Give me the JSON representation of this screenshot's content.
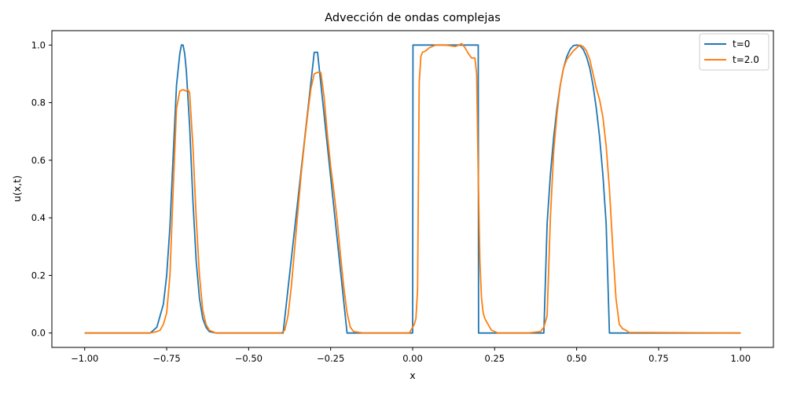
{
  "chart_data": {
    "type": "line",
    "title": "Advección de ondas complejas",
    "xlabel": "x",
    "ylabel": "u(x,t)",
    "xlim": [
      -1.1,
      1.1
    ],
    "ylim": [
      -0.05,
      1.05
    ],
    "xticks": [
      -1.0,
      -0.75,
      -0.5,
      -0.25,
      0.0,
      0.25,
      0.5,
      0.75,
      1.0
    ],
    "xtick_labels": [
      "−1.00",
      "−0.75",
      "−0.50",
      "−0.25",
      "0.00",
      "0.25",
      "0.50",
      "0.75",
      "1.00"
    ],
    "yticks": [
      0.0,
      0.2,
      0.4,
      0.6,
      0.8,
      1.0
    ],
    "ytick_labels": [
      "0.0",
      "0.2",
      "0.4",
      "0.6",
      "0.8",
      "1.0"
    ],
    "grid": false,
    "legend_position": "top-right",
    "colors": {
      "t0": "#1f77b4",
      "t2": "#ff7f0e",
      "axes": "#000000"
    },
    "series": [
      {
        "name": "t=0",
        "color": "#1f77b4",
        "x": [
          -1.0,
          -0.8,
          -0.78,
          -0.76,
          -0.75,
          -0.74,
          -0.73,
          -0.72,
          -0.71,
          -0.705,
          -0.7,
          -0.695,
          -0.69,
          -0.68,
          -0.67,
          -0.66,
          -0.65,
          -0.64,
          -0.63,
          -0.62,
          -0.6,
          -0.4,
          -0.395,
          -0.3,
          -0.29,
          -0.2,
          -0.195,
          0.0,
          0.001,
          0.2,
          0.201,
          0.4,
          0.41,
          0.42,
          0.43,
          0.44,
          0.45,
          0.46,
          0.47,
          0.48,
          0.49,
          0.5,
          0.51,
          0.52,
          0.53,
          0.54,
          0.55,
          0.56,
          0.57,
          0.58,
          0.59,
          0.6,
          0.601,
          1.0
        ],
        "y": [
          0.0,
          0.0,
          0.02,
          0.1,
          0.2,
          0.37,
          0.62,
          0.86,
          0.97,
          1.0,
          1.0,
          0.97,
          0.91,
          0.72,
          0.46,
          0.25,
          0.12,
          0.05,
          0.02,
          0.005,
          0.0,
          0.0,
          0.0,
          0.975,
          0.975,
          0.0,
          0.0,
          0.0,
          1.0,
          1.0,
          0.0,
          0.0,
          0.38,
          0.55,
          0.68,
          0.78,
          0.86,
          0.92,
          0.96,
          0.985,
          0.998,
          1.0,
          0.998,
          0.985,
          0.96,
          0.92,
          0.86,
          0.78,
          0.68,
          0.55,
          0.38,
          0.0,
          0.0,
          0.0
        ]
      },
      {
        "name": "t=2.0",
        "color": "#ff7f0e",
        "x": [
          -1.0,
          -0.8,
          -0.78,
          -0.77,
          -0.76,
          -0.75,
          -0.74,
          -0.73,
          -0.72,
          -0.71,
          -0.7,
          -0.69,
          -0.685,
          -0.68,
          -0.67,
          -0.66,
          -0.65,
          -0.64,
          -0.63,
          -0.62,
          -0.6,
          -0.4,
          -0.39,
          -0.38,
          -0.37,
          -0.36,
          -0.35,
          -0.34,
          -0.33,
          -0.32,
          -0.31,
          -0.3,
          -0.29,
          -0.28,
          -0.27,
          -0.26,
          -0.25,
          -0.24,
          -0.23,
          -0.22,
          -0.21,
          -0.2,
          -0.19,
          -0.18,
          -0.15,
          -0.05,
          -0.01,
          0.0,
          0.005,
          0.01,
          0.015,
          0.02,
          0.025,
          0.03,
          0.04,
          0.05,
          0.07,
          0.1,
          0.13,
          0.15,
          0.16,
          0.17,
          0.18,
          0.19,
          0.195,
          0.2,
          0.205,
          0.21,
          0.215,
          0.22,
          0.23,
          0.24,
          0.25,
          0.26,
          0.28,
          0.35,
          0.39,
          0.4,
          0.41,
          0.42,
          0.43,
          0.44,
          0.45,
          0.46,
          0.47,
          0.48,
          0.49,
          0.5,
          0.51,
          0.52,
          0.53,
          0.54,
          0.55,
          0.56,
          0.57,
          0.58,
          0.59,
          0.6,
          0.61,
          0.62,
          0.63,
          0.64,
          0.65,
          0.66,
          1.0
        ],
        "y": [
          0.0,
          0.0,
          0.005,
          0.01,
          0.03,
          0.07,
          0.2,
          0.5,
          0.78,
          0.84,
          0.845,
          0.84,
          0.845,
          0.835,
          0.65,
          0.4,
          0.2,
          0.08,
          0.03,
          0.01,
          0.0,
          0.0,
          0.01,
          0.06,
          0.16,
          0.29,
          0.42,
          0.55,
          0.66,
          0.76,
          0.85,
          0.9,
          0.905,
          0.905,
          0.82,
          0.69,
          0.58,
          0.49,
          0.39,
          0.27,
          0.16,
          0.07,
          0.02,
          0.005,
          0.0,
          0.0,
          0.0,
          0.02,
          0.03,
          0.05,
          0.15,
          0.87,
          0.96,
          0.975,
          0.98,
          0.99,
          1.0,
          1.0,
          0.995,
          1.005,
          0.99,
          0.97,
          0.955,
          0.955,
          0.9,
          0.55,
          0.25,
          0.12,
          0.07,
          0.05,
          0.03,
          0.01,
          0.005,
          0.0,
          0.0,
          0.0,
          0.005,
          0.02,
          0.06,
          0.4,
          0.63,
          0.76,
          0.86,
          0.92,
          0.95,
          0.965,
          0.98,
          0.99,
          1.0,
          0.995,
          0.98,
          0.95,
          0.9,
          0.85,
          0.81,
          0.75,
          0.65,
          0.5,
          0.3,
          0.12,
          0.03,
          0.015,
          0.01,
          0.002,
          0.0
        ]
      }
    ]
  }
}
